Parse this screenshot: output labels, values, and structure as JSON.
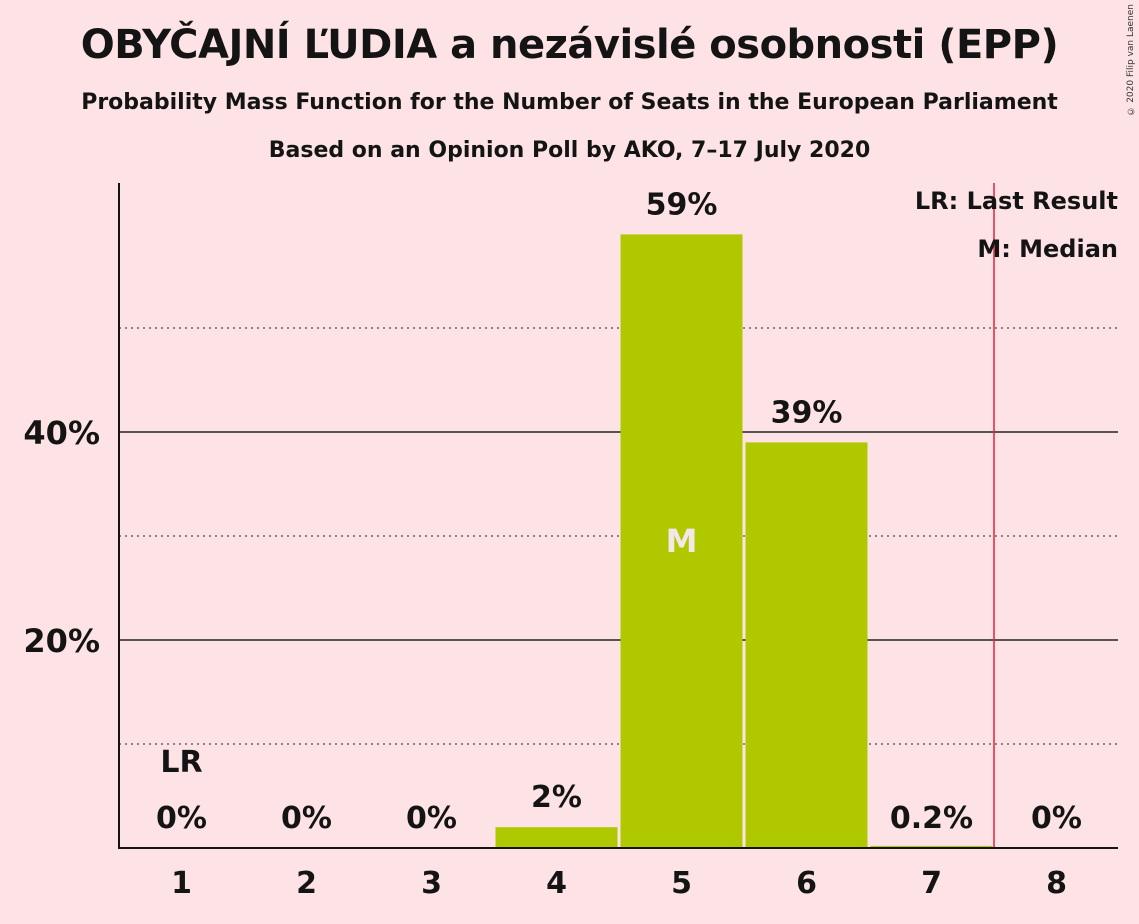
{
  "title": "OBYČAJNÍ ĽUDIA a nezávislé osobnosti (EPP)",
  "subtitle": "Probability Mass Function for the Number of Seats in the European Parliament",
  "subtitle2": "Based on an Opinion Poll by AKO, 7–17 July 2020",
  "copyright": "© 2020 Filip van Laenen",
  "legend": {
    "lr": "LR: Last Result",
    "m": "M: Median"
  },
  "colors": {
    "bar": "#b0c800",
    "background": "#fde3e5",
    "last_result_line": "#e0243c"
  },
  "chart_data": {
    "type": "bar",
    "categories": [
      "1",
      "2",
      "3",
      "4",
      "5",
      "6",
      "7",
      "8"
    ],
    "values": [
      0,
      0,
      0,
      2,
      59,
      39,
      0.2,
      0
    ],
    "data_labels": [
      "0%",
      "0%",
      "0%",
      "2%",
      "59%",
      "39%",
      "0.2%",
      "0%"
    ],
    "yticks": [
      {
        "value": 20,
        "label": "20%"
      },
      {
        "value": 40,
        "label": "40%"
      }
    ],
    "minor_gridlines": [
      10,
      30,
      50
    ],
    "ylim": [
      0,
      64
    ],
    "last_result": {
      "category": "1",
      "label": "LR"
    },
    "last_result_line_after_category": "7",
    "median": {
      "category": "5",
      "label": "M"
    },
    "xlabel": "",
    "ylabel": ""
  }
}
